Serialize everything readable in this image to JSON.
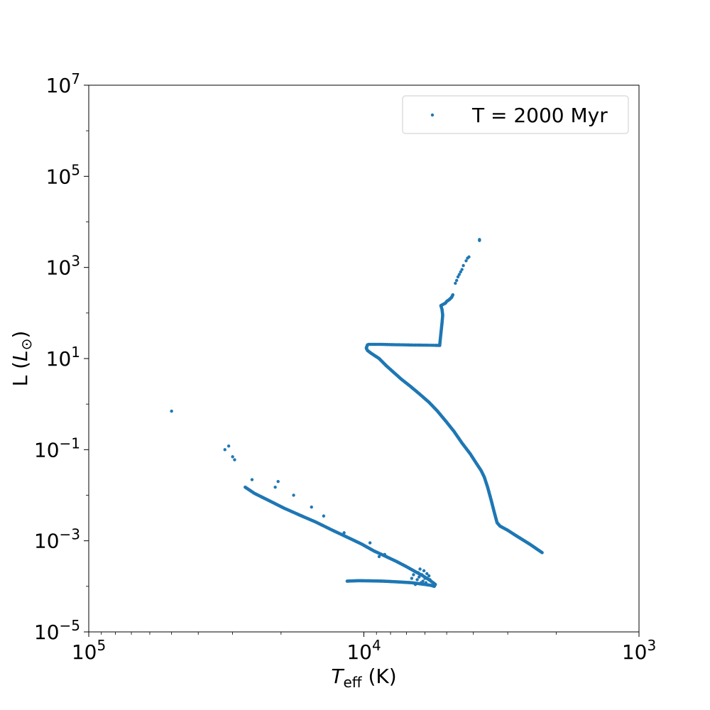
{
  "chart_data": {
    "type": "scatter",
    "xlabel_main": "T",
    "xlabel_sub": "eff",
    "xlabel_unit": " (K)",
    "ylabel_main": "L (",
    "ylabel_sym": "L",
    "ylabel_sub": "⊙",
    "ylabel_end": ")",
    "x_scale": "log",
    "y_scale": "log",
    "x_inverted": true,
    "xlim": [
      100000,
      1000
    ],
    "ylim": [
      1e-05,
      10000000.0
    ],
    "x_ticks": [
      {
        "value": 100000,
        "base": "10",
        "exp": "5"
      },
      {
        "value": 10000,
        "base": "10",
        "exp": "4"
      },
      {
        "value": 1000,
        "base": "10",
        "exp": "3"
      }
    ],
    "y_ticks": [
      {
        "value": 1e-05,
        "base": "10",
        "exp": "−5"
      },
      {
        "value": 0.001,
        "base": "10",
        "exp": "−3"
      },
      {
        "value": 0.1,
        "base": "10",
        "exp": "−1"
      },
      {
        "value": 10,
        "base": "10",
        "exp": "1"
      },
      {
        "value": 1000,
        "base": "10",
        "exp": "3"
      },
      {
        "value": 100000,
        "base": "10",
        "exp": "5"
      },
      {
        "value": 10000000,
        "base": "10",
        "exp": "7"
      }
    ],
    "grid": false,
    "legend_position": "top-right",
    "color": "#1f77b4",
    "series": [
      {
        "name": "T = 2000 Myr",
        "main_sequence_track": [
          [
            2250,
            0.00055
          ],
          [
            2500,
            0.00085
          ],
          [
            2800,
            0.0013
          ],
          [
            3000,
            0.0017
          ],
          [
            3200,
            0.0021
          ],
          [
            3280,
            0.0025
          ],
          [
            3350,
            0.004
          ],
          [
            3450,
            0.008
          ],
          [
            3550,
            0.015
          ],
          [
            3650,
            0.025
          ],
          [
            3750,
            0.035
          ],
          [
            3900,
            0.05
          ],
          [
            4100,
            0.08
          ],
          [
            4400,
            0.14
          ],
          [
            4700,
            0.25
          ],
          [
            5000,
            0.4
          ],
          [
            5400,
            0.7
          ],
          [
            5800,
            1.1
          ],
          [
            6300,
            1.7
          ],
          [
            6800,
            2.5
          ],
          [
            7300,
            3.5
          ],
          [
            7800,
            5.0
          ],
          [
            8300,
            7.0
          ],
          [
            8800,
            10
          ],
          [
            9400,
            13
          ],
          [
            9700,
            15
          ],
          [
            9800,
            17
          ],
          [
            9700,
            20
          ]
        ],
        "subgiant_branch": [
          [
            9600,
            20.5
          ],
          [
            9200,
            20.5
          ],
          [
            8700,
            20.5
          ],
          [
            8200,
            20.3
          ],
          [
            7700,
            20.1
          ],
          [
            7200,
            20
          ],
          [
            6700,
            19.8
          ],
          [
            6200,
            19.7
          ],
          [
            5800,
            19.6
          ],
          [
            5500,
            19.5
          ],
          [
            5300,
            19.4
          ]
        ],
        "red_giant_branch": [
          [
            5300,
            20
          ],
          [
            5250,
            35
          ],
          [
            5200,
            60
          ],
          [
            5170,
            90
          ],
          [
            5200,
            120
          ],
          [
            5250,
            145
          ],
          [
            5150,
            155
          ],
          [
            5050,
            165
          ],
          [
            5000,
            180
          ],
          [
            4900,
            195
          ],
          [
            4800,
            220
          ],
          [
            4750,
            250
          ]
        ],
        "upper_rgb_points": [
          [
            4650,
            450
          ],
          [
            4600,
            520
          ],
          [
            4550,
            620
          ],
          [
            4500,
            700
          ],
          [
            4450,
            800
          ],
          [
            4400,
            900
          ],
          [
            4350,
            1100
          ],
          [
            4250,
            1400
          ],
          [
            4200,
            1600
          ],
          [
            4150,
            1700
          ],
          [
            3800,
            3900
          ],
          [
            3800,
            4100
          ]
        ],
        "white_dwarf_track": [
          [
            11500,
            0.00013
          ],
          [
            10500,
            0.000133
          ],
          [
            9500,
            0.000132
          ],
          [
            8500,
            0.00013
          ],
          [
            7500,
            0.000125
          ],
          [
            6700,
            0.00012
          ],
          [
            6000,
            0.00011
          ],
          [
            5700,
            0.000105
          ],
          [
            5550,
            0.0001
          ],
          [
            5500,
            0.00011
          ],
          [
            5600,
            0.00012
          ],
          [
            5800,
            0.00014
          ],
          [
            6100,
            0.00017
          ],
          [
            6500,
            0.00021
          ],
          [
            7000,
            0.00027
          ],
          [
            7600,
            0.00035
          ],
          [
            8300,
            0.00045
          ],
          [
            9200,
            0.0006
          ],
          [
            10200,
            0.00085
          ],
          [
            11500,
            0.0012
          ],
          [
            13000,
            0.0017
          ],
          [
            15000,
            0.0026
          ],
          [
            17000,
            0.0036
          ],
          [
            19500,
            0.0052
          ],
          [
            22000,
            0.0075
          ],
          [
            25000,
            0.011
          ],
          [
            27000,
            0.015
          ]
        ],
        "white_dwarf_cluster": [
          [
            6400,
            0.00014
          ],
          [
            6300,
            0.00016
          ],
          [
            6150,
            0.00018
          ],
          [
            6000,
            0.00015
          ],
          [
            5900,
            0.00019
          ],
          [
            6200,
            0.00012
          ],
          [
            6500,
            0.00011
          ],
          [
            6050,
            0.00022
          ],
          [
            5800,
            0.00017
          ],
          [
            6100,
            0.00013
          ],
          [
            6350,
            0.0002
          ],
          [
            5950,
            0.00012
          ],
          [
            6700,
            0.00015
          ],
          [
            6600,
            0.00018
          ],
          [
            5750,
            0.00014
          ],
          [
            6250,
            0.00024
          ]
        ],
        "outliers": [
          [
            50000,
            0.7
          ],
          [
            32000,
            0.1
          ],
          [
            31000,
            0.12
          ],
          [
            30000,
            0.07
          ],
          [
            29500,
            0.06
          ],
          [
            25500,
            0.022
          ],
          [
            21000,
            0.015
          ],
          [
            20500,
            0.02
          ],
          [
            18000,
            0.01
          ],
          [
            15500,
            0.0055
          ],
          [
            14000,
            0.0035
          ],
          [
            11800,
            0.0015
          ],
          [
            9500,
            0.0009
          ],
          [
            8800,
            0.00045
          ],
          [
            8400,
            0.0005
          ]
        ]
      }
    ]
  }
}
